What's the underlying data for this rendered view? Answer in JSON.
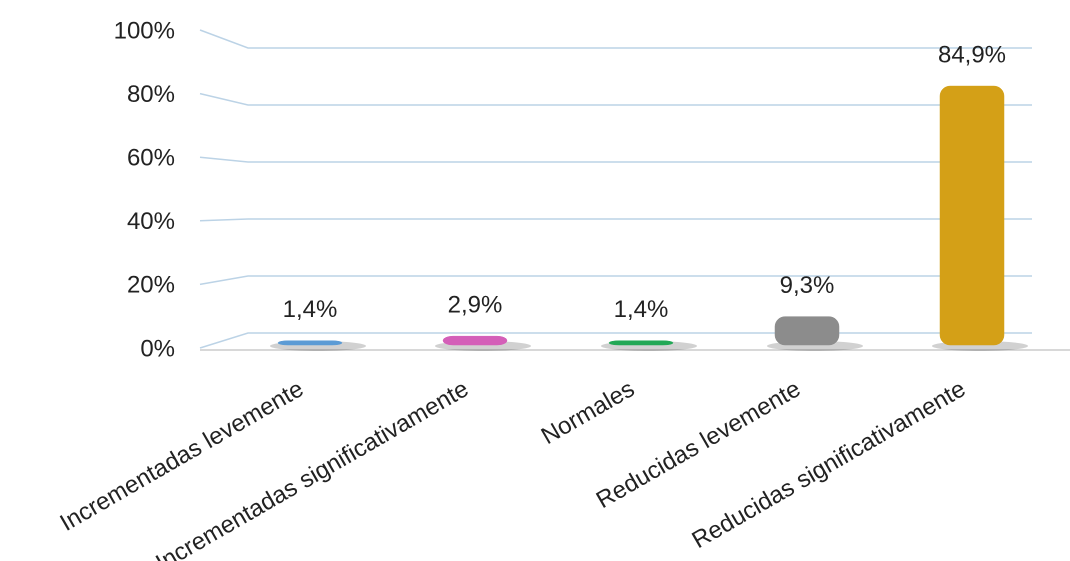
{
  "chart_data": {
    "type": "bar",
    "categories": [
      "Incrementadas levemente",
      "Incrementadas significativamente",
      "Normales",
      "Reducidas levemente",
      "Reducidas significativamente"
    ],
    "values": [
      1.4,
      2.9,
      1.4,
      9.3,
      84.9
    ],
    "value_labels": [
      "1,4%",
      "2,9%",
      "1,4%",
      "9,3%",
      "84,9%"
    ],
    "colors": [
      "#5b9bd5",
      "#d45fb8",
      "#22a856",
      "#8c8c8c",
      "#d4a017"
    ],
    "ylim": [
      0,
      100
    ],
    "yticks": [
      {
        "value": 0,
        "label": "0%"
      },
      {
        "value": 20,
        "label": "20%"
      },
      {
        "value": 40,
        "label": "40%"
      },
      {
        "value": 60,
        "label": "60%"
      },
      {
        "value": 80,
        "label": "80%"
      },
      {
        "value": 100,
        "label": "100%"
      }
    ],
    "grid": true
  }
}
